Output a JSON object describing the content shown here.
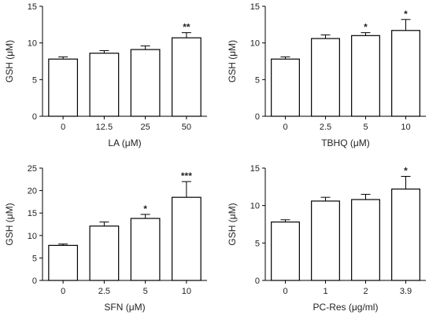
{
  "colors": {
    "bar_fill": "#ffffff",
    "stroke": "#000000",
    "text": "#222222"
  },
  "chart_data": [
    {
      "type": "bar",
      "title": "",
      "xlabel": "LA (μM)",
      "ylabel": "GSH (μM)",
      "categories": [
        "0",
        "12.5",
        "25",
        "50"
      ],
      "values": [
        7.8,
        8.6,
        9.1,
        10.7
      ],
      "errors": [
        0.3,
        0.35,
        0.5,
        0.7
      ],
      "annotations": [
        "",
        "",
        "",
        "**"
      ],
      "ylim": [
        0,
        15
      ],
      "yticks": [
        0,
        5,
        10,
        15
      ],
      "grid": false
    },
    {
      "type": "bar",
      "title": "",
      "xlabel": "TBHQ (μM)",
      "ylabel": "GSH (μM)",
      "categories": [
        "0",
        "2.5",
        "5",
        "10"
      ],
      "values": [
        7.8,
        10.6,
        11.0,
        11.7
      ],
      "errors": [
        0.3,
        0.5,
        0.4,
        1.5
      ],
      "annotations": [
        "",
        "",
        "*",
        "*"
      ],
      "ylim": [
        0,
        15
      ],
      "yticks": [
        0,
        5,
        10,
        15
      ],
      "grid": false
    },
    {
      "type": "bar",
      "title": "",
      "xlabel": "SFN (μM)",
      "ylabel": "GSH (μM)",
      "categories": [
        "0",
        "2.5",
        "5",
        "10"
      ],
      "values": [
        7.8,
        12.1,
        13.8,
        18.5
      ],
      "errors": [
        0.3,
        0.9,
        0.9,
        3.5
      ],
      "annotations": [
        "",
        "",
        "*",
        "***"
      ],
      "ylim": [
        0,
        25
      ],
      "yticks": [
        0,
        5,
        10,
        15,
        20,
        25
      ],
      "grid": false
    },
    {
      "type": "bar",
      "title": "",
      "xlabel": "PC-Res (μg/ml)",
      "ylabel": "GSH (μM)",
      "categories": [
        "0",
        "1",
        "2",
        "3.9"
      ],
      "values": [
        7.8,
        10.6,
        10.8,
        12.2
      ],
      "errors": [
        0.3,
        0.5,
        0.7,
        1.7
      ],
      "annotations": [
        "",
        "",
        "",
        "*"
      ],
      "ylim": [
        0,
        15
      ],
      "yticks": [
        0,
        5,
        10,
        15
      ],
      "grid": false
    }
  ]
}
